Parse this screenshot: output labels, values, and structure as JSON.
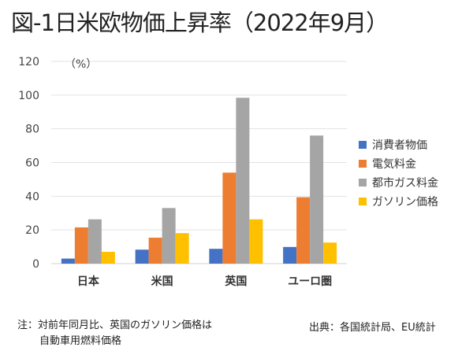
{
  "chart_data": {
    "type": "bar",
    "title": "図-1日米欧物価上昇率（2022年9月）",
    "ylabel": "（%）",
    "ylim": [
      0,
      120
    ],
    "yticks": [
      0,
      20,
      40,
      60,
      80,
      100,
      120
    ],
    "grid": true,
    "legend_position": "right",
    "categories": [
      "日本",
      "米国",
      "英国",
      "ユーロ圏"
    ],
    "series": [
      {
        "name": "消費者物価",
        "color": "#4472c4",
        "values": [
          3.0,
          8.3,
          8.8,
          9.9
        ]
      },
      {
        "name": "電気料金",
        "color": "#ed7d31",
        "values": [
          21.5,
          15.4,
          54.0,
          39.4
        ]
      },
      {
        "name": "都市ガス料金",
        "color": "#a5a5a5",
        "values": [
          26.3,
          33.0,
          98.4,
          76.0
        ]
      },
      {
        "name": "ガソリン価格",
        "color": "#ffc000",
        "values": [
          7.0,
          18.1,
          26.3,
          12.5
        ]
      }
    ]
  },
  "notes": {
    "note_line1": "注：対前年同月比、英国のガソリン価格は",
    "note_line2": "自動車用燃料価格",
    "source": "出典：各国統計局、EU統計"
  }
}
